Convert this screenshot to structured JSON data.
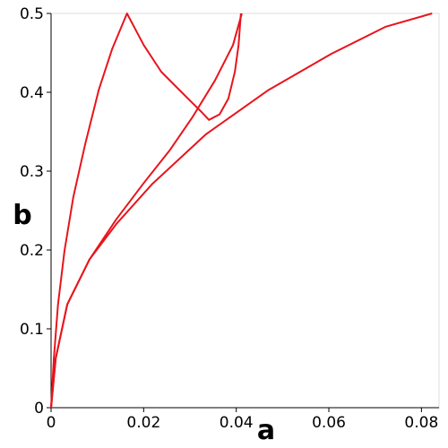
{
  "chart_data": {
    "type": "line",
    "xlabel": "a",
    "ylabel": "b",
    "xlim": [
      0,
      0.0838
    ],
    "ylim": [
      0,
      0.5
    ],
    "xticks": [
      0,
      0.02,
      0.04,
      0.06,
      0.08
    ],
    "yticks": [
      0,
      0.1,
      0.2,
      0.3,
      0.4,
      0.5
    ],
    "series": [
      {
        "color": "#e8141c",
        "x": [
          0,
          0.0006,
          0.0015,
          0.0029,
          0.0048,
          0.0074,
          0.0103,
          0.0132,
          0.0164,
          0.02,
          0.0238,
          0.0277,
          0.0306,
          0.0325,
          0.0341,
          0.0364,
          0.0383,
          0.0397,
          0.0405,
          0.041
        ],
        "values": [
          0,
          0.0625,
          0.131,
          0.199,
          0.267,
          0.335,
          0.403,
          0.455,
          0.5,
          0.46,
          0.426,
          0.403,
          0.386,
          0.375,
          0.365,
          0.372,
          0.392,
          0.426,
          0.46,
          0.5
        ]
      },
      {
        "color": "#e8141c",
        "x": [
          0,
          0.001,
          0.0035,
          0.0083,
          0.0141,
          0.0199,
          0.0257,
          0.0306,
          0.0354,
          0.0393,
          0.0412
        ],
        "values": [
          0,
          0.0625,
          0.131,
          0.188,
          0.239,
          0.284,
          0.327,
          0.369,
          0.415,
          0.46,
          0.5
        ]
      },
      {
        "color": "#e8141c",
        "x": [
          0,
          0.001,
          0.0035,
          0.0083,
          0.0141,
          0.0219,
          0.0335,
          0.047,
          0.0606,
          0.0722,
          0.0823
        ],
        "values": [
          0,
          0.0625,
          0.131,
          0.188,
          0.233,
          0.284,
          0.347,
          0.403,
          0.449,
          0.483,
          0.5
        ]
      }
    ]
  }
}
